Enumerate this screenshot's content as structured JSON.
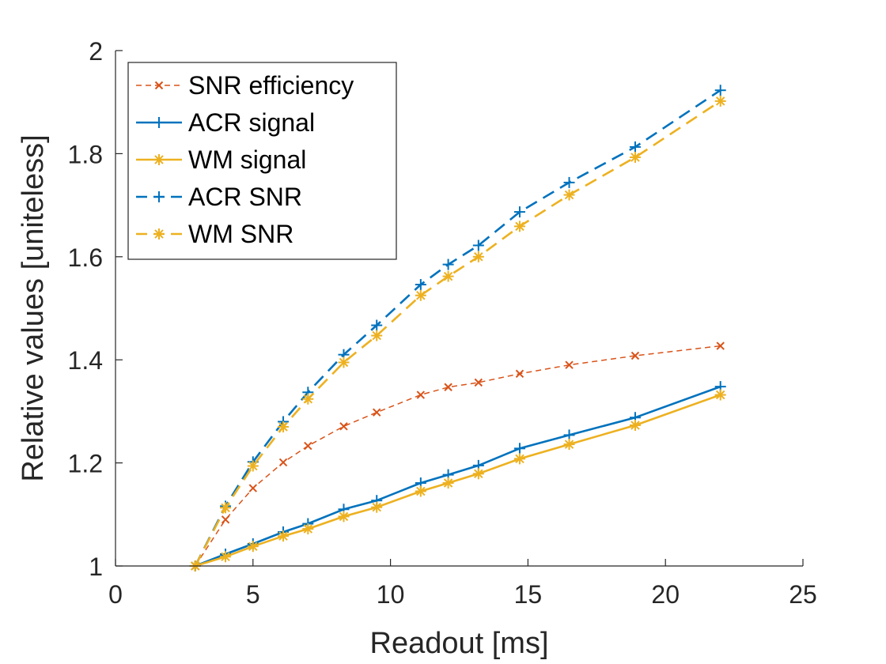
{
  "chart_data": {
    "type": "line",
    "title": "",
    "xlabel": "Readout [ms]",
    "ylabel": "Relative values [uniteless]",
    "xlim": [
      0,
      25
    ],
    "ylim": [
      1,
      2
    ],
    "xticks": [
      0,
      5,
      10,
      15,
      20,
      25
    ],
    "yticks": [
      1,
      1.2,
      1.4,
      1.6,
      1.8,
      2
    ],
    "xtick_labels": [
      "0",
      "5",
      "10",
      "15",
      "20",
      "25"
    ],
    "ytick_labels": [
      "1",
      "1.2",
      "1.4",
      "1.6",
      "1.8",
      "2"
    ],
    "grid": false,
    "legend_position": "top-left",
    "x": [
      2.9,
      4.0,
      5.0,
      6.1,
      7.0,
      8.3,
      9.5,
      11.1,
      12.1,
      13.2,
      14.7,
      16.5,
      18.9,
      22.0
    ],
    "series": [
      {
        "name": "SNR efficiency",
        "color": "#D95319",
        "line_style": "dashed-thin",
        "marker": "x",
        "values": [
          1.0,
          1.09,
          1.151,
          1.201,
          1.233,
          1.271,
          1.298,
          1.332,
          1.347,
          1.356,
          1.373,
          1.39,
          1.408,
          1.427
        ]
      },
      {
        "name": "ACR signal",
        "color": "#0072BD",
        "line_style": "solid",
        "marker": "plus",
        "values": [
          1.0,
          1.023,
          1.043,
          1.066,
          1.082,
          1.11,
          1.127,
          1.161,
          1.177,
          1.195,
          1.228,
          1.254,
          1.288,
          1.348
        ]
      },
      {
        "name": "WM signal",
        "color": "#EDB120",
        "line_style": "solid",
        "marker": "asterisk",
        "values": [
          1.0,
          1.018,
          1.038,
          1.058,
          1.072,
          1.096,
          1.114,
          1.145,
          1.161,
          1.179,
          1.208,
          1.236,
          1.273,
          1.332
        ]
      },
      {
        "name": "ACR SNR",
        "color": "#0072BD",
        "line_style": "dashed",
        "marker": "plus",
        "values": [
          1.0,
          1.116,
          1.202,
          1.28,
          1.337,
          1.41,
          1.467,
          1.546,
          1.585,
          1.622,
          1.687,
          1.744,
          1.813,
          1.923
        ]
      },
      {
        "name": "WM SNR",
        "color": "#EDB120",
        "line_style": "dashed",
        "marker": "asterisk",
        "values": [
          1.0,
          1.113,
          1.194,
          1.27,
          1.324,
          1.395,
          1.447,
          1.525,
          1.562,
          1.6,
          1.659,
          1.72,
          1.793,
          1.902
        ]
      }
    ]
  }
}
